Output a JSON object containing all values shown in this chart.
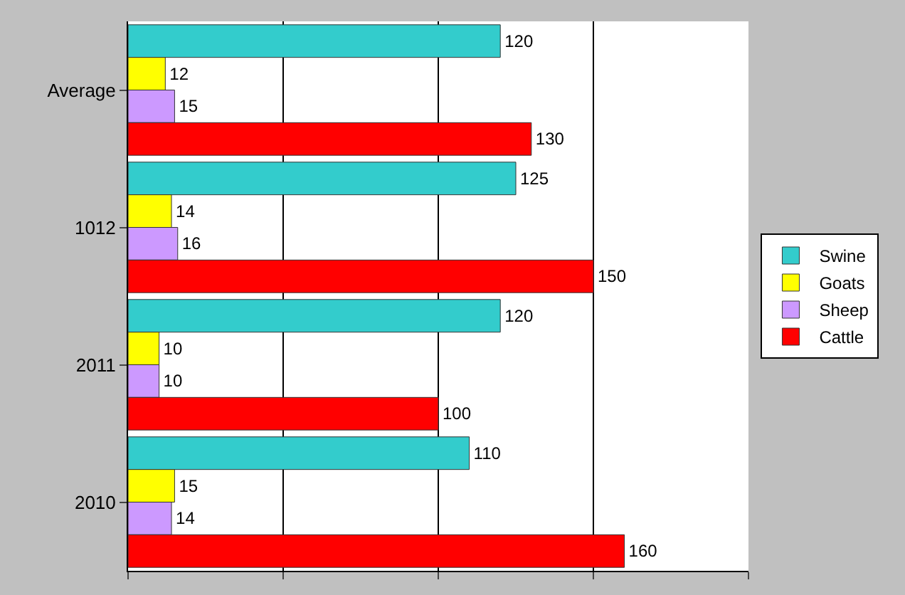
{
  "chart_data": {
    "type": "bar",
    "orientation": "horizontal",
    "categories": [
      "Average",
      "1012",
      "2011",
      "2010"
    ],
    "series": [
      {
        "name": "Swine",
        "color": "#33cccc",
        "values": [
          120,
          125,
          120,
          110
        ]
      },
      {
        "name": "Goats",
        "color": "#ffff00",
        "values": [
          12,
          14,
          10,
          15
        ]
      },
      {
        "name": "Sheep",
        "color": "#cc99ff",
        "values": [
          15,
          16,
          10,
          14
        ]
      },
      {
        "name": "Cattle",
        "color": "#ff0000",
        "values": [
          130,
          150,
          100,
          160
        ]
      }
    ],
    "xlim": [
      0,
      200
    ],
    "xticks": [
      {
        "value": 0,
        "label": null
      },
      {
        "value": 50,
        "label": null
      },
      {
        "value": 100,
        "label": null
      },
      {
        "value": 150,
        "label": null
      },
      {
        "value": 200,
        "label": null
      }
    ],
    "grid": "x",
    "legend": "right",
    "data_labels": true
  }
}
